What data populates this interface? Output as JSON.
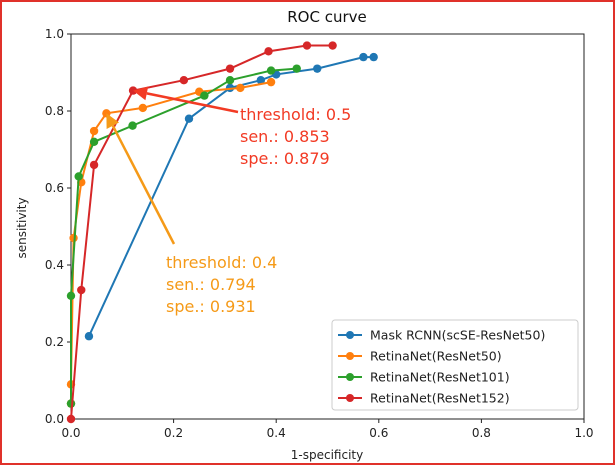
{
  "chart_data": {
    "type": "line",
    "title": "ROC curve",
    "xlabel": "1-specificity",
    "ylabel": "sensitivity",
    "xlim": [
      0.0,
      1.0
    ],
    "ylim": [
      0.0,
      1.0
    ],
    "xticks": [
      "0.0",
      "0.2",
      "0.4",
      "0.6",
      "0.8",
      "1.0"
    ],
    "yticks": [
      "0.0",
      "0.2",
      "0.4",
      "0.6",
      "0.8",
      "1.0"
    ],
    "legend_position": "lower-right",
    "series": [
      {
        "name": "Mask RCNN(scSE-ResNet50)",
        "color": "#1f77b4",
        "x": [
          0.035,
          0.23,
          0.31,
          0.37,
          0.4,
          0.48,
          0.57,
          0.59
        ],
        "y": [
          0.215,
          0.78,
          0.86,
          0.88,
          0.895,
          0.91,
          0.94,
          0.94
        ]
      },
      {
        "name": "RetinaNet(ResNet50)",
        "color": "#ff7f0e",
        "x": [
          0.0,
          0.0,
          0.005,
          0.02,
          0.045,
          0.069,
          0.14,
          0.25,
          0.33,
          0.39
        ],
        "y": [
          0.04,
          0.09,
          0.47,
          0.615,
          0.748,
          0.794,
          0.808,
          0.85,
          0.86,
          0.875
        ]
      },
      {
        "name": "RetinaNet(ResNet101)",
        "color": "#2ca02c",
        "x": [
          0.0,
          0.0,
          0.015,
          0.045,
          0.12,
          0.26,
          0.31,
          0.39,
          0.44
        ],
        "y": [
          0.04,
          0.32,
          0.63,
          0.72,
          0.762,
          0.84,
          0.88,
          0.905,
          0.91
        ]
      },
      {
        "name": "RetinaNet(ResNet152)",
        "color": "#d62728",
        "x": [
          0.0,
          0.02,
          0.045,
          0.121,
          0.22,
          0.31,
          0.385,
          0.46,
          0.51
        ],
        "y": [
          0.0,
          0.335,
          0.66,
          0.853,
          0.88,
          0.91,
          0.955,
          0.97,
          0.97
        ]
      }
    ],
    "annotations": [
      {
        "color": "#f23a24",
        "lines": [
          "threshold: 0.5",
          "sen.: 0.853",
          "spe.: 0.879"
        ],
        "target": [
          0.121,
          0.853
        ]
      },
      {
        "color": "#f59a18",
        "lines": [
          "threshold: 0.4",
          "sen.: 0.794",
          "spe.: 0.931"
        ],
        "target": [
          0.069,
          0.794
        ]
      }
    ]
  }
}
